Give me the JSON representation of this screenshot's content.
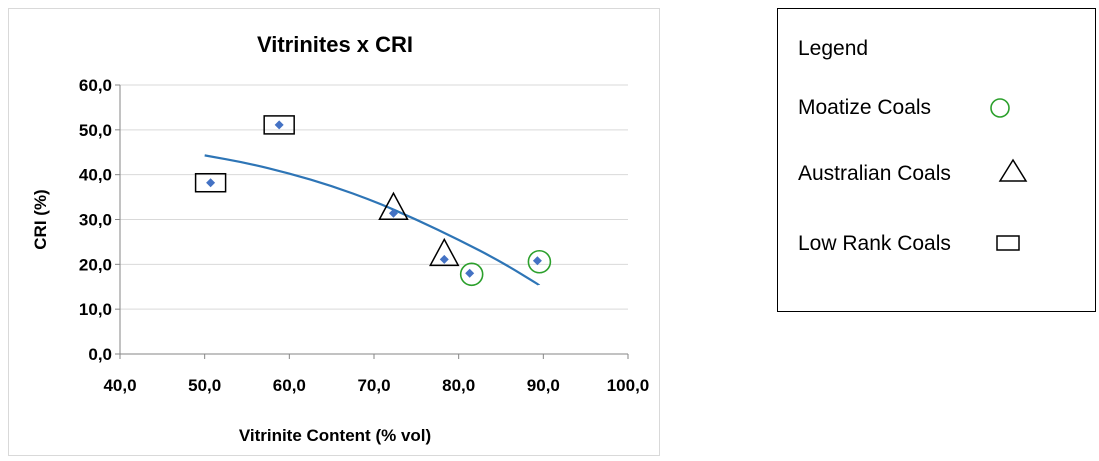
{
  "chart_data": {
    "type": "scatter",
    "title": "Vitrinites x  CRI",
    "xlabel": "Vitrinite Content (% vol)",
    "ylabel": "CRI  (%)",
    "xlim": [
      40,
      100
    ],
    "ylim": [
      0,
      60
    ],
    "x_ticks": [
      "40,0",
      "50,0",
      "60,0",
      "70,0",
      "80,0",
      "90,0",
      "100,0"
    ],
    "y_ticks": [
      "0,0",
      "10,0",
      "20,0",
      "30,0",
      "40,0",
      "50,0",
      "60,0"
    ],
    "grid": "horizontal",
    "series": [
      {
        "values": [
          {
            "x": 50.7,
            "y": 38.2,
            "group": "Low Rank Coals"
          },
          {
            "x": 58.8,
            "y": 51.1,
            "group": "Low Rank Coals"
          },
          {
            "x": 72.3,
            "y": 31.4,
            "group": "Australian Coals"
          },
          {
            "x": 78.3,
            "y": 21.1,
            "group": "Australian Coals"
          },
          {
            "x": 81.3,
            "y": 18.0,
            "group": "Moatize Coals"
          },
          {
            "x": 89.3,
            "y": 20.8,
            "group": "Moatize Coals"
          }
        ],
        "color": "#4472c4"
      }
    ],
    "trendline": {
      "points": [
        [
          50,
          44.3
        ],
        [
          55,
          42.6
        ],
        [
          60,
          40.3
        ],
        [
          65,
          37.5
        ],
        [
          70,
          34.1
        ],
        [
          75,
          30.0
        ],
        [
          80,
          25.5
        ],
        [
          85,
          20.6
        ],
        [
          89.5,
          15.4
        ]
      ],
      "color": "#2e75b6"
    }
  },
  "legend": {
    "title": "Legend",
    "items": [
      {
        "label": "Moatize Coals",
        "icon": "circle-icon",
        "color": "#2ca02c"
      },
      {
        "label": "Australian Coals",
        "icon": "triangle-icon",
        "color": "#000000"
      },
      {
        "label": "Low Rank Coals",
        "icon": "rectangle-icon",
        "color": "#000000"
      }
    ]
  }
}
